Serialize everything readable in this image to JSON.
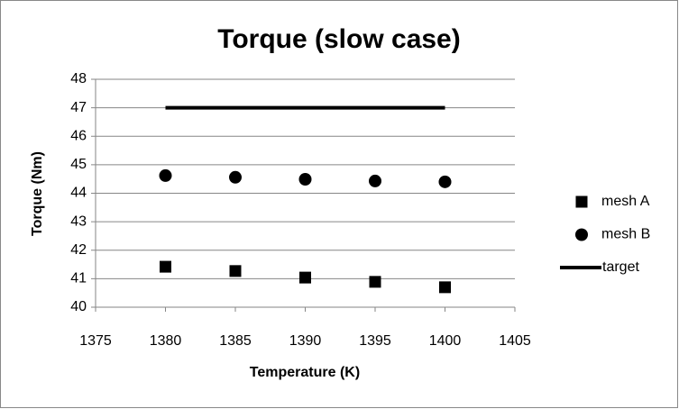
{
  "chart_data": {
    "type": "scatter",
    "title": "Torque (slow case)",
    "x_label": "Temperature (K)",
    "y_label": "Torque (Nm)",
    "xlim": [
      1375,
      1405
    ],
    "xticks": [
      1375,
      1380,
      1385,
      1390,
      1395,
      1400,
      1405
    ],
    "ylim": [
      40,
      48
    ],
    "yticks": [
      40,
      41,
      42,
      43,
      44,
      45,
      46,
      47,
      48
    ],
    "grid": true,
    "legend": "right",
    "series": [
      {
        "name": "mesh A",
        "color": "#000000",
        "marker": "square",
        "x": [
          1380,
          1385,
          1390,
          1395,
          1400
        ],
        "values": [
          41.42,
          41.27,
          41.04,
          40.89,
          40.7
        ]
      },
      {
        "name": "mesh B",
        "color": "#000000",
        "marker": "circle",
        "x": [
          1380,
          1385,
          1390,
          1395,
          1400
        ],
        "values": [
          44.62,
          44.56,
          44.49,
          44.43,
          44.4
        ]
      },
      {
        "name": "target",
        "color": "#000000",
        "marker": "line",
        "x": [
          1380,
          1400
        ],
        "values": [
          47,
          47
        ]
      }
    ]
  }
}
